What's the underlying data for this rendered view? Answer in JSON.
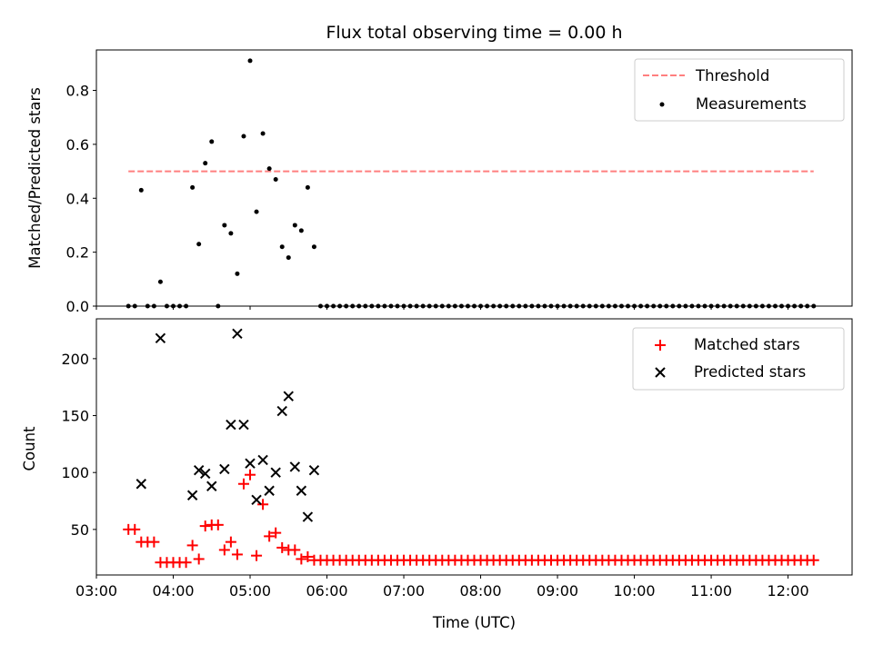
{
  "chart_data": [
    {
      "type": "scatter",
      "title": "Flux total observing time = 0.00 h",
      "xlabel": "",
      "ylabel": "Matched/Predicted stars",
      "xlim": [
        "03:00",
        "12:50"
      ],
      "ylim": [
        0,
        0.95
      ],
      "yticks": [
        "0.0",
        "0.2",
        "0.4",
        "0.6",
        "0.8"
      ],
      "legend_position": "top-right",
      "series": [
        {
          "name": "Threshold",
          "style": "dashed-line",
          "color": "#ff7f7f",
          "x": [
            "03:25",
            "12:20"
          ],
          "y": [
            0.5,
            0.5
          ]
        },
        {
          "name": "Measurements",
          "style": "dot",
          "color": "#000000",
          "x": [
            "03:25",
            "03:30",
            "03:35",
            "03:40",
            "03:45",
            "03:50",
            "03:55",
            "04:00",
            "04:05",
            "04:10",
            "04:15",
            "04:20",
            "04:25",
            "04:30",
            "04:35",
            "04:40",
            "04:45",
            "04:50",
            "04:55",
            "05:00",
            "05:05",
            "05:10",
            "05:15",
            "05:20",
            "05:25",
            "05:30",
            "05:35",
            "05:40",
            "05:45",
            "05:50",
            "05:55",
            "06:00",
            "06:05",
            "06:10",
            "06:15",
            "06:20",
            "06:25",
            "06:30",
            "06:35",
            "06:40",
            "06:45",
            "06:50",
            "06:55",
            "07:00",
            "07:05",
            "07:10",
            "07:15",
            "07:20",
            "07:25",
            "07:30",
            "07:35",
            "07:40",
            "07:45",
            "07:50",
            "07:55",
            "08:00",
            "08:05",
            "08:10",
            "08:15",
            "08:20",
            "08:25",
            "08:30",
            "08:35",
            "08:40",
            "08:45",
            "08:50",
            "08:55",
            "09:00",
            "09:05",
            "09:10",
            "09:15",
            "09:20",
            "09:25",
            "09:30",
            "09:35",
            "09:40",
            "09:45",
            "09:50",
            "09:55",
            "10:00",
            "10:05",
            "10:10",
            "10:15",
            "10:20",
            "10:25",
            "10:30",
            "10:35",
            "10:40",
            "10:45",
            "10:50",
            "10:55",
            "11:00",
            "11:05",
            "11:10",
            "11:15",
            "11:20",
            "11:25",
            "11:30",
            "11:35",
            "11:40",
            "11:45",
            "11:50",
            "11:55",
            "12:00",
            "12:05",
            "12:10",
            "12:15",
            "12:20"
          ],
          "y": [
            0.0,
            0.0,
            0.43,
            0.0,
            0.0,
            0.09,
            0.0,
            0.0,
            0.0,
            0.0,
            0.44,
            0.23,
            0.53,
            0.61,
            0.0,
            0.3,
            0.27,
            0.12,
            0.63,
            0.91,
            0.35,
            0.64,
            0.51,
            0.47,
            0.22,
            0.18,
            0.3,
            0.28,
            0.44,
            0.22,
            0.0,
            0.0,
            0.0,
            0.0,
            0.0,
            0.0,
            0.0,
            0.0,
            0.0,
            0.0,
            0.0,
            0.0,
            0.0,
            0.0,
            0.0,
            0.0,
            0.0,
            0.0,
            0.0,
            0.0,
            0.0,
            0.0,
            0.0,
            0.0,
            0.0,
            0.0,
            0.0,
            0.0,
            0.0,
            0.0,
            0.0,
            0.0,
            0.0,
            0.0,
            0.0,
            0.0,
            0.0,
            0.0,
            0.0,
            0.0,
            0.0,
            0.0,
            0.0,
            0.0,
            0.0,
            0.0,
            0.0,
            0.0,
            0.0,
            0.0,
            0.0,
            0.0,
            0.0,
            0.0,
            0.0,
            0.0,
            0.0,
            0.0,
            0.0,
            0.0,
            0.0,
            0.0,
            0.0,
            0.0,
            0.0,
            0.0,
            0.0,
            0.0,
            0.0,
            0.0,
            0.0,
            0.0,
            0.0,
            0.0,
            0.0,
            0.0,
            0.0,
            0.0
          ]
        }
      ]
    },
    {
      "type": "scatter",
      "title": "",
      "xlabel": "Time (UTC)",
      "ylabel": "Count",
      "xlim": [
        "03:00",
        "12:50"
      ],
      "ylim": [
        10,
        235
      ],
      "xticks": [
        "03:00",
        "04:00",
        "05:00",
        "06:00",
        "07:00",
        "08:00",
        "09:00",
        "10:00",
        "11:00",
        "12:00"
      ],
      "yticks": [
        "50",
        "100",
        "150",
        "200"
      ],
      "legend_position": "top-right",
      "series": [
        {
          "name": "Matched stars",
          "style": "plus",
          "color": "#ff0000",
          "x": [
            "03:25",
            "03:30",
            "03:35",
            "03:40",
            "03:45",
            "03:50",
            "03:55",
            "04:00",
            "04:05",
            "04:10",
            "04:15",
            "04:20",
            "04:25",
            "04:30",
            "04:35",
            "04:40",
            "04:45",
            "04:50",
            "04:55",
            "05:00",
            "05:05",
            "05:10",
            "05:15",
            "05:20",
            "05:25",
            "05:30",
            "05:35",
            "05:40",
            "05:45",
            "05:50",
            "05:55",
            "06:00",
            "06:05",
            "06:10",
            "06:15",
            "06:20",
            "06:25",
            "06:30",
            "06:35",
            "06:40",
            "06:45",
            "06:50",
            "06:55",
            "07:00",
            "07:05",
            "07:10",
            "07:15",
            "07:20",
            "07:25",
            "07:30",
            "07:35",
            "07:40",
            "07:45",
            "07:50",
            "07:55",
            "08:00",
            "08:05",
            "08:10",
            "08:15",
            "08:20",
            "08:25",
            "08:30",
            "08:35",
            "08:40",
            "08:45",
            "08:50",
            "08:55",
            "09:00",
            "09:05",
            "09:10",
            "09:15",
            "09:20",
            "09:25",
            "09:30",
            "09:35",
            "09:40",
            "09:45",
            "09:50",
            "09:55",
            "10:00",
            "10:05",
            "10:10",
            "10:15",
            "10:20",
            "10:25",
            "10:30",
            "10:35",
            "10:40",
            "10:45",
            "10:50",
            "10:55",
            "11:00",
            "11:05",
            "11:10",
            "11:15",
            "11:20",
            "11:25",
            "11:30",
            "11:35",
            "11:40",
            "11:45",
            "11:50",
            "11:55",
            "12:00",
            "12:05",
            "12:10",
            "12:15",
            "12:20"
          ],
          "y": [
            50,
            50,
            39,
            39,
            39,
            21,
            21,
            21,
            21,
            21,
            36,
            24,
            53,
            54,
            54,
            32,
            39,
            28,
            90,
            98,
            27,
            72,
            44,
            47,
            34,
            32,
            32,
            24,
            26,
            23,
            23,
            23,
            23,
            23,
            23,
            23,
            23,
            23,
            23,
            23,
            23,
            23,
            23,
            23,
            23,
            23,
            23,
            23,
            23,
            23,
            23,
            23,
            23,
            23,
            23,
            23,
            23,
            23,
            23,
            23,
            23,
            23,
            23,
            23,
            23,
            23,
            23,
            23,
            23,
            23,
            23,
            23,
            23,
            23,
            23,
            23,
            23,
            23,
            23,
            23,
            23,
            23,
            23,
            23,
            23,
            23,
            23,
            23,
            23,
            23,
            23,
            23,
            23,
            23,
            23,
            23,
            23,
            23,
            23,
            23,
            23,
            23,
            23,
            23,
            23,
            23,
            23,
            23
          ]
        },
        {
          "name": "Predicted stars",
          "style": "x",
          "color": "#000000",
          "x": [
            "03:35",
            "03:50",
            "04:15",
            "04:20",
            "04:25",
            "04:30",
            "04:40",
            "04:45",
            "04:50",
            "04:55",
            "05:00",
            "05:05",
            "05:10",
            "05:15",
            "05:20",
            "05:25",
            "05:30",
            "05:35",
            "05:40",
            "05:45",
            "05:50"
          ],
          "y": [
            90,
            218,
            80,
            102,
            99,
            88,
            103,
            142,
            222,
            142,
            108,
            76,
            111,
            84,
            100,
            154,
            167,
            105,
            84,
            61,
            102
          ]
        }
      ]
    }
  ]
}
